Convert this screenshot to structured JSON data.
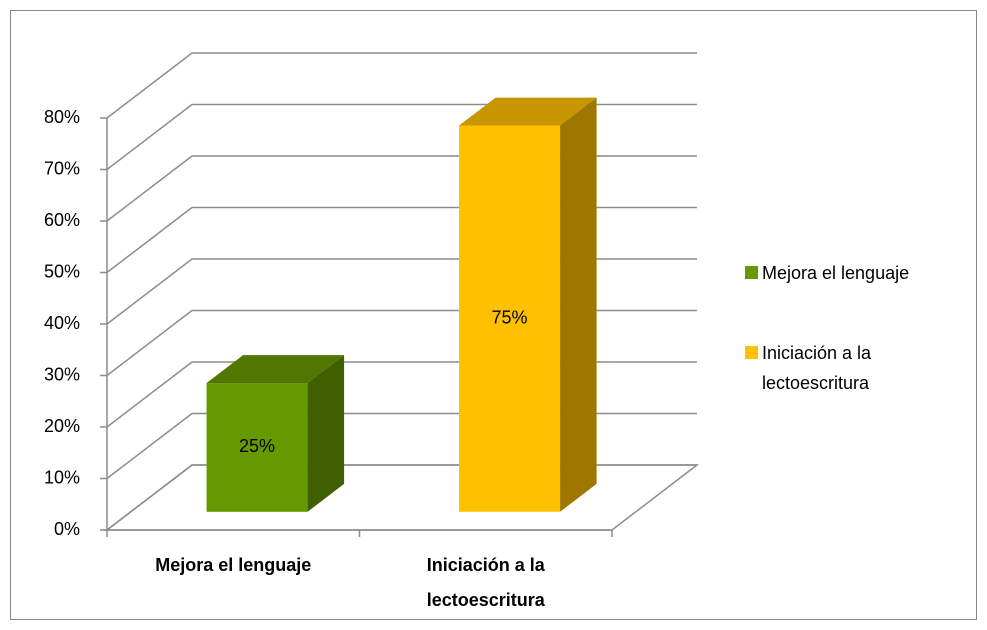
{
  "chart_data": {
    "type": "bar3d",
    "categories": [
      "Mejora el lenguaje",
      "Iniciación a la lectoescritura"
    ],
    "series": [
      {
        "name": "Mejora el lenguaje",
        "color": "#669900",
        "values": [
          25,
          null
        ],
        "value_labels": [
          "25%",
          null
        ]
      },
      {
        "name": "Iniciación a la lectoescritura",
        "color": "#ffc000",
        "values": [
          null,
          75
        ],
        "value_labels": [
          null,
          "75%"
        ]
      }
    ],
    "ylim": [
      0,
      80
    ],
    "yticks": [
      {
        "value": 0,
        "label": "0%"
      },
      {
        "value": 10,
        "label": "10%"
      },
      {
        "value": 20,
        "label": "20%"
      },
      {
        "value": 30,
        "label": "30%"
      },
      {
        "value": 40,
        "label": "40%"
      },
      {
        "value": 50,
        "label": "50%"
      },
      {
        "value": 60,
        "label": "60%"
      },
      {
        "value": 70,
        "label": "70%"
      },
      {
        "value": 80,
        "label": "80%"
      }
    ],
    "legend": "right",
    "grid": true
  }
}
